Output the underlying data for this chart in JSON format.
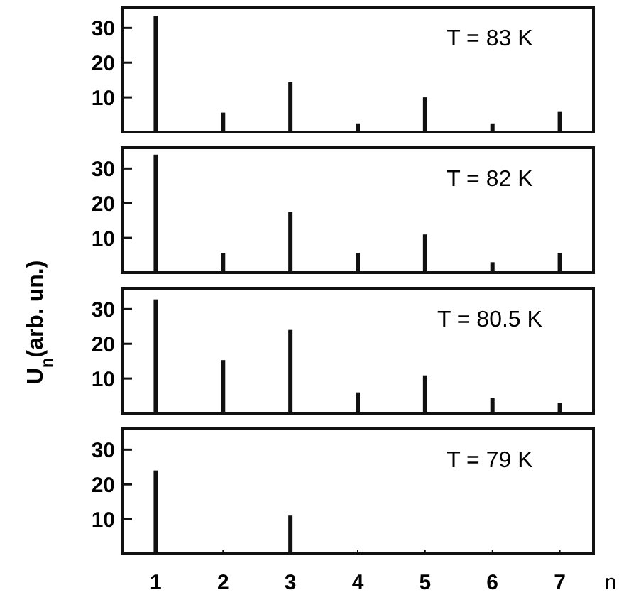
{
  "chart_data": [
    {
      "type": "bar",
      "x": [
        1,
        2,
        3,
        4,
        5,
        6,
        7
      ],
      "values": [
        33.5,
        5.6,
        14.4,
        2.5,
        10,
        2.5,
        5.8
      ],
      "color": "#111111",
      "xlim": [
        0.5,
        7.5
      ],
      "xticks": [
        1,
        2,
        3,
        4,
        5,
        6,
        7
      ],
      "ylim": [
        0,
        36
      ],
      "yticks": [
        10,
        20,
        30
      ],
      "tick_labels": "y",
      "annotations": [
        "T = 83 K"
      ]
    },
    {
      "type": "bar",
      "x": [
        1,
        2,
        3,
        4,
        5,
        6,
        7
      ],
      "values": [
        34,
        5.7,
        17.5,
        5.7,
        11,
        3,
        5.7
      ],
      "color": "#111111",
      "xlim": [
        0.5,
        7.5
      ],
      "xticks": [
        1,
        2,
        3,
        4,
        5,
        6,
        7
      ],
      "ylim": [
        0,
        36
      ],
      "yticks": [
        10,
        20,
        30
      ],
      "tick_labels": "y",
      "annotations": [
        "T = 82 K"
      ]
    },
    {
      "type": "bar",
      "x": [
        1,
        2,
        3,
        4,
        5,
        6,
        7
      ],
      "values": [
        32.8,
        15.3,
        24,
        6,
        10.9,
        4.3,
        2.9
      ],
      "color": "#111111",
      "xlim": [
        0.5,
        7.5
      ],
      "xticks": [
        1,
        2,
        3,
        4,
        5,
        6,
        7
      ],
      "ylim": [
        0,
        36
      ],
      "yticks": [
        10,
        20,
        30
      ],
      "tick_labels": "y",
      "ylabel": "U$_{n}$(arb. un.)",
      "annotations": [
        "T = 80.5 K"
      ]
    },
    {
      "type": "bar",
      "x": [
        1,
        3
      ],
      "values": [
        24,
        11
      ],
      "color": "#111111",
      "xlim": [
        0.5,
        7.5
      ],
      "xticks": [
        1,
        2,
        3,
        4,
        5,
        6,
        7
      ],
      "ylim": [
        0,
        36
      ],
      "yticks": [
        10,
        20,
        30
      ],
      "xlabel": "n",
      "annotations": [
        "T = 79 K"
      ]
    }
  ]
}
